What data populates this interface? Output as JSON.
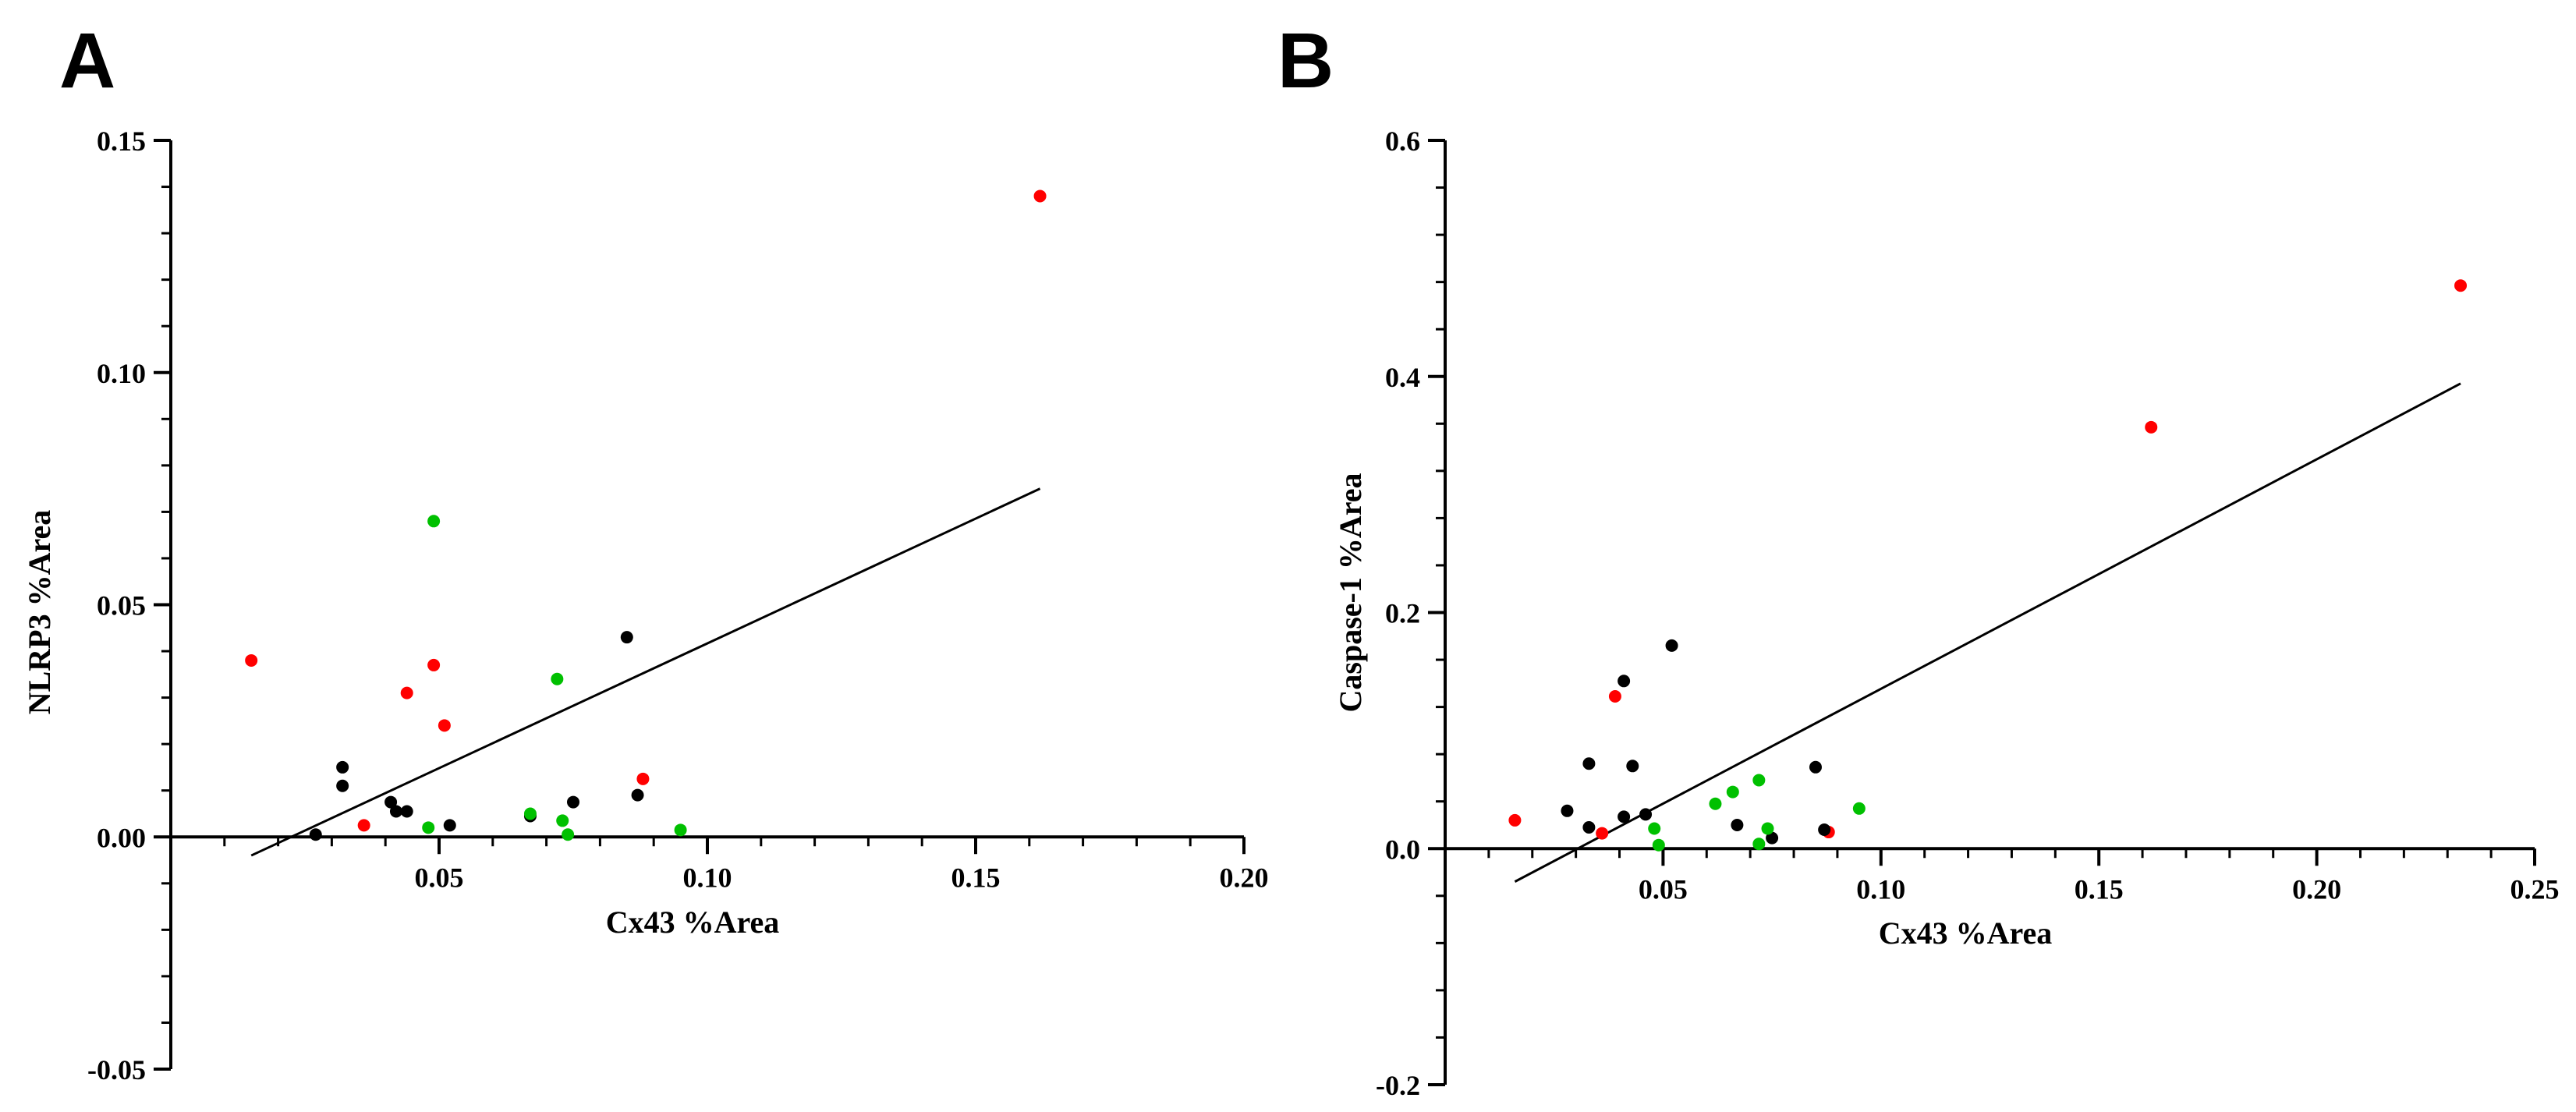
{
  "colors": {
    "red": "#ff0000",
    "green": "#00c000",
    "black": "#000000",
    "axis": "#000000"
  },
  "chart_data": [
    {
      "type": "scatter",
      "panel_label": "A",
      "xlabel": "Cx43 %Area",
      "ylabel": "NLRP3 %Area",
      "xlim": [
        0.0,
        0.2
      ],
      "ylim": [
        -0.05,
        0.15
      ],
      "x_ticks": [
        0.05,
        0.1,
        0.15,
        0.2
      ],
      "x_tick_labels": [
        "0.05",
        "0.10",
        "0.15",
        "0.20"
      ],
      "y_ticks": [
        -0.05,
        0.0,
        0.05,
        0.1,
        0.15
      ],
      "y_tick_labels": [
        "-0.05",
        "0.00",
        "0.05",
        "0.10",
        "0.15"
      ],
      "fit_line": {
        "x": [
          0.015,
          0.162
        ],
        "y": [
          -0.004,
          0.075
        ]
      },
      "series": [
        {
          "name": "red",
          "color": "#ff0000",
          "points": [
            [
              0.162,
              0.138
            ],
            [
              0.015,
              0.038
            ],
            [
              0.049,
              0.037
            ],
            [
              0.044,
              0.031
            ],
            [
              0.051,
              0.024
            ],
            [
              0.088,
              0.0125
            ],
            [
              0.036,
              0.0025
            ]
          ]
        },
        {
          "name": "black",
          "color": "#000000",
          "points": [
            [
              0.085,
              0.043
            ],
            [
              0.032,
              0.015
            ],
            [
              0.032,
              0.011
            ],
            [
              0.041,
              0.0075
            ],
            [
              0.042,
              0.0055
            ],
            [
              0.044,
              0.0055
            ],
            [
              0.075,
              0.0075
            ],
            [
              0.087,
              0.009
            ],
            [
              0.052,
              0.0025
            ],
            [
              0.067,
              0.0045
            ],
            [
              0.027,
              0.0005
            ]
          ]
        },
        {
          "name": "green",
          "color": "#00c000",
          "points": [
            [
              0.049,
              0.068
            ],
            [
              0.072,
              0.034
            ],
            [
              0.067,
              0.005
            ],
            [
              0.073,
              0.0035
            ],
            [
              0.048,
              0.002
            ],
            [
              0.074,
              0.0005
            ],
            [
              0.095,
              0.0015
            ]
          ]
        }
      ]
    },
    {
      "type": "scatter",
      "panel_label": "B",
      "xlabel": "Cx43 %Area",
      "ylabel": "Caspase-1 %Area",
      "xlim": [
        0.0,
        0.25
      ],
      "ylim": [
        -0.2,
        0.6
      ],
      "x_ticks": [
        0.05,
        0.1,
        0.15,
        0.2,
        0.25
      ],
      "x_tick_labels": [
        "0.05",
        "0.10",
        "0.15",
        "0.20",
        "0.25"
      ],
      "y_ticks": [
        -0.2,
        0.0,
        0.2,
        0.4,
        0.6
      ],
      "y_tick_labels": [
        "-0.2",
        "0.0",
        "0.2",
        "0.4",
        "0.6"
      ],
      "fit_line": {
        "x": [
          0.016,
          0.233
        ],
        "y": [
          -0.028,
          0.394
        ]
      },
      "series": [
        {
          "name": "red",
          "color": "#ff0000",
          "points": [
            [
              0.233,
              0.477
            ],
            [
              0.162,
              0.357
            ],
            [
              0.039,
              0.129
            ],
            [
              0.016,
              0.024
            ],
            [
              0.036,
              0.013
            ],
            [
              0.088,
              0.014
            ]
          ]
        },
        {
          "name": "black",
          "color": "#000000",
          "points": [
            [
              0.052,
              0.172
            ],
            [
              0.041,
              0.142
            ],
            [
              0.033,
              0.072
            ],
            [
              0.043,
              0.07
            ],
            [
              0.085,
              0.069
            ],
            [
              0.028,
              0.032
            ],
            [
              0.041,
              0.027
            ],
            [
              0.046,
              0.029
            ],
            [
              0.033,
              0.018
            ],
            [
              0.067,
              0.02
            ],
            [
              0.087,
              0.016
            ],
            [
              0.075,
              0.009
            ]
          ]
        },
        {
          "name": "green",
          "color": "#00c000",
          "points": [
            [
              0.072,
              0.058
            ],
            [
              0.066,
              0.048
            ],
            [
              0.062,
              0.038
            ],
            [
              0.095,
              0.034
            ],
            [
              0.048,
              0.017
            ],
            [
              0.074,
              0.017
            ],
            [
              0.049,
              0.003
            ],
            [
              0.072,
              0.004
            ]
          ]
        }
      ]
    }
  ]
}
